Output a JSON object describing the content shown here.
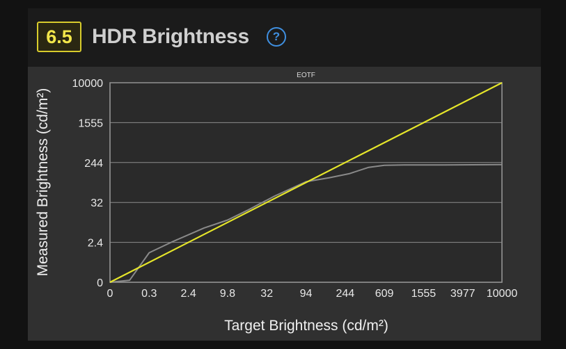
{
  "header": {
    "score": "6.5",
    "title": "HDR Brightness",
    "help_icon": "question-circle-icon"
  },
  "colors": {
    "badge_border": "#d8cc2c",
    "badge_text": "#f2e64a",
    "help": "#3f8fe0",
    "target_line": "#e6e62a",
    "measured_line": "#8a8a8a"
  },
  "chart_data": {
    "type": "line",
    "title": "EOTF",
    "xlabel": "Target Brightness (cd/m²)",
    "ylabel": "Measured Brightness (cd/m²)",
    "x_ticks": [
      "0",
      "0.3",
      "2.4",
      "9.8",
      "32",
      "94",
      "244",
      "609",
      "1555",
      "3977",
      "10000"
    ],
    "y_ticks": [
      "0",
      "2.4",
      "32",
      "244",
      "1555",
      "10000"
    ],
    "x_tick_pos": [
      0,
      1,
      2,
      3,
      4,
      5,
      6,
      7,
      8,
      9,
      10
    ],
    "y_tick_pos": [
      0,
      1,
      2,
      3,
      4,
      5
    ],
    "xlim": [
      0,
      10
    ],
    "ylim": [
      0,
      5
    ],
    "grid": "horizontal",
    "scale": "PQ (perceptual)",
    "series": [
      {
        "role": "target",
        "color": "#e6e62a",
        "x": [
          0,
          10
        ],
        "y": [
          0,
          5
        ]
      },
      {
        "role": "measured",
        "color": "#8a8a8a",
        "x": [
          0,
          0.5,
          1.0,
          1.6,
          2.4,
          3.0,
          3.5,
          4.2,
          5.0,
          5.6,
          6.1,
          6.6,
          7.0,
          7.5,
          8.5,
          10
        ],
        "y": [
          0,
          0.05,
          0.74,
          1.02,
          1.36,
          1.56,
          1.8,
          2.16,
          2.52,
          2.62,
          2.72,
          2.88,
          2.93,
          2.94,
          2.94,
          2.95
        ]
      }
    ]
  }
}
